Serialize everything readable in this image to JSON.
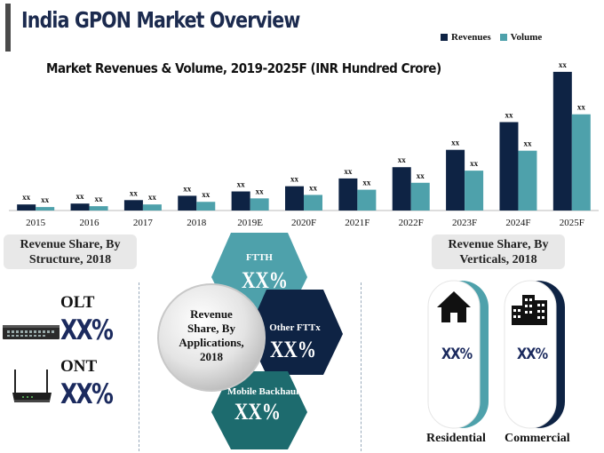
{
  "header": {
    "title": "India GPON Market Overview",
    "subtitle": "Market Revenues & Volume, 2019-2025F (INR Hundred Crore)"
  },
  "chart_data": {
    "type": "bar",
    "categories": [
      "2015",
      "2016",
      "2017",
      "2018",
      "2019E",
      "2020F",
      "2021F",
      "2022F",
      "2023F",
      "2024F",
      "2025F"
    ],
    "series": [
      {
        "name": "Revenues",
        "color": "#0e2344",
        "values": [
          7,
          8,
          12,
          17,
          22,
          28,
          37,
          50,
          70,
          102,
          160
        ],
        "labels": [
          "xx",
          "xx",
          "xx",
          "xx",
          "xx",
          "xx",
          "xx",
          "xx",
          "xx",
          "xx",
          "xx"
        ]
      },
      {
        "name": "Volume",
        "color": "#4ea1ab",
        "values": [
          4,
          5,
          7,
          10,
          14,
          18,
          24,
          32,
          46,
          69,
          111
        ],
        "labels": [
          "xx",
          "xx",
          "xx",
          "xx",
          "xx",
          "xx",
          "xx",
          "xx",
          "xx",
          "xx",
          "xx"
        ]
      }
    ],
    "ylim": [
      0,
      165
    ],
    "grid": false,
    "legend_position": "top-right"
  },
  "structure": {
    "heading": "Revenue Share, By Structure, 2018",
    "items": [
      {
        "label": "OLT",
        "value": "XX%",
        "icon": "olt-device-icon"
      },
      {
        "label": "ONT",
        "value": "XX%",
        "icon": "ont-router-icon"
      }
    ]
  },
  "applications": {
    "center_label": "Revenue Share, By Applications, 2018",
    "segments": [
      {
        "label": "FTTH",
        "value": "XX%",
        "color": "#4ea1ab"
      },
      {
        "label": "Other FTTx",
        "value": "XX%",
        "color": "#0e2344"
      },
      {
        "label": "Mobile Backhaul",
        "value": "XX%",
        "color": "#1d6b6e"
      }
    ]
  },
  "verticals": {
    "heading": "Revenue Share, By Verticals, 2018",
    "items": [
      {
        "label": "Residential",
        "value": "XX%",
        "icon": "house-icon",
        "color": "#4ea1ab"
      },
      {
        "label": "Commercial",
        "value": "XX%",
        "icon": "office-buildings-icon",
        "color": "#0e2344"
      }
    ]
  }
}
